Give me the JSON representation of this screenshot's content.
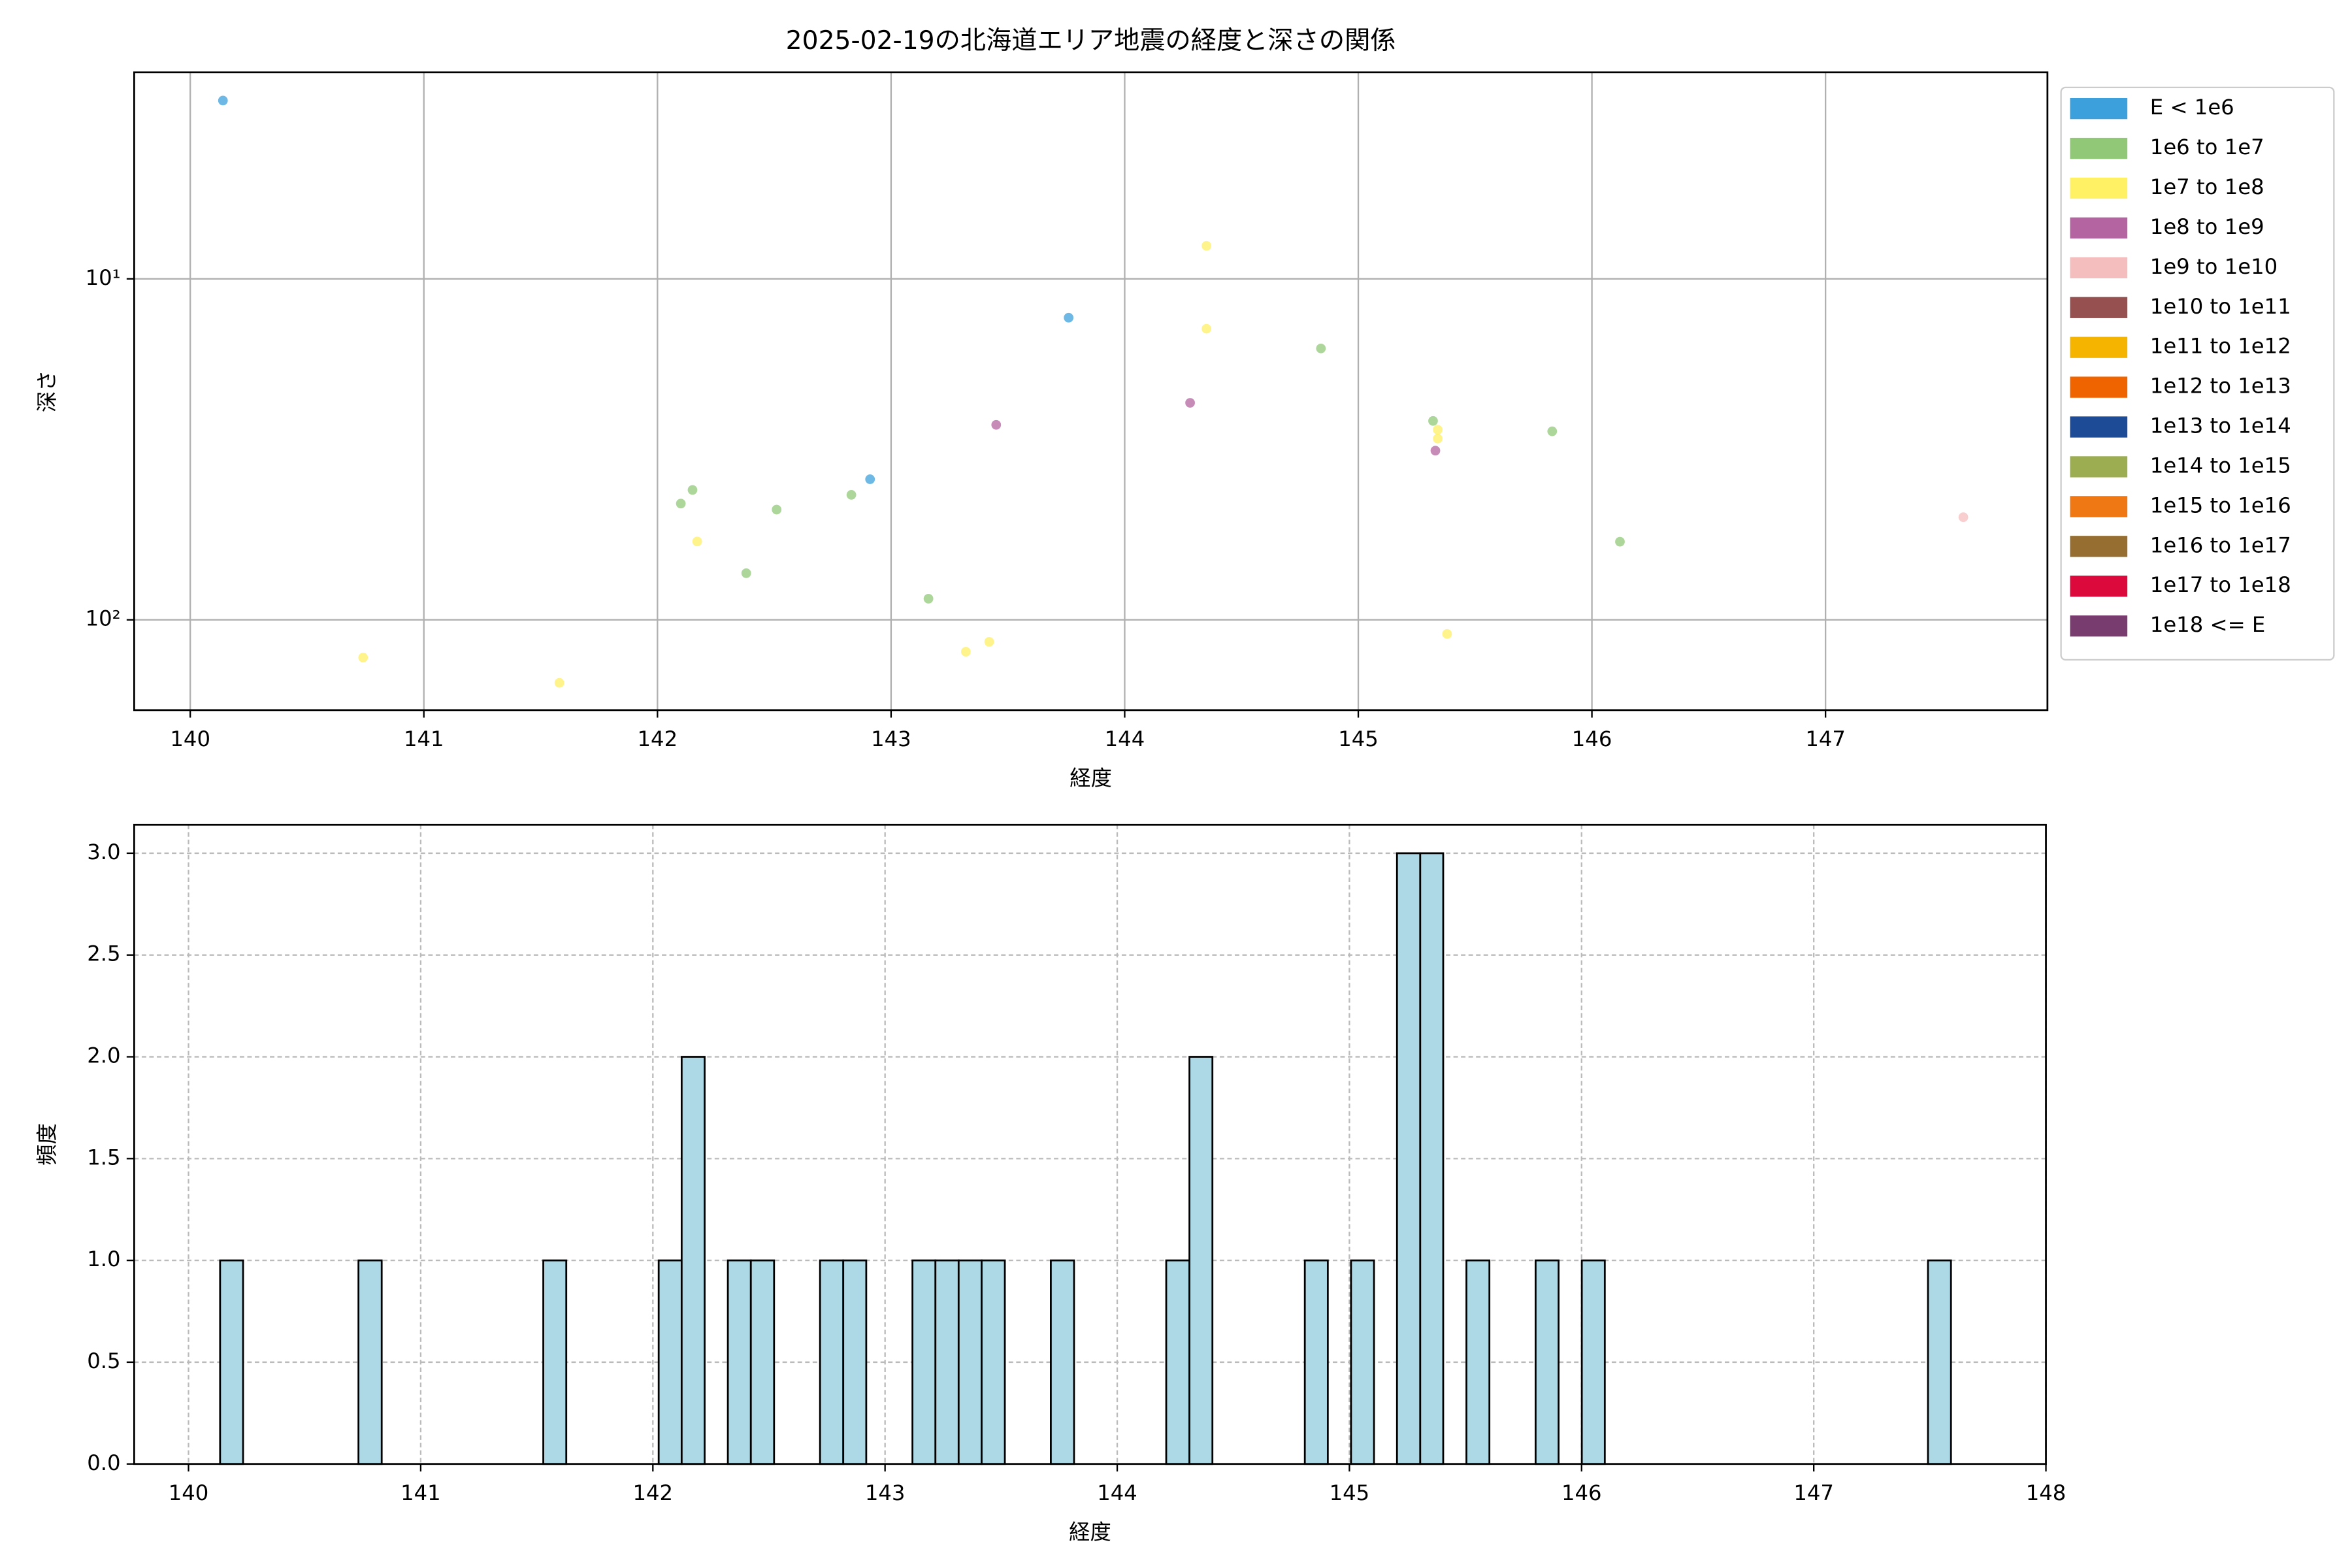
{
  "chart_data": [
    {
      "type": "scatter",
      "title": "2025-02-19の北海道エリア地震の経度と深さの関係",
      "x_label": "経度",
      "y_label": "深さ",
      "xlim": [
        139.76,
        147.95
      ],
      "xticks": [
        140,
        141,
        142,
        143,
        144,
        145,
        146,
        147
      ],
      "ylim": [
        184,
        2.48
      ],
      "yscale": "log",
      "yticks": [
        {
          "value": 10,
          "label": "10¹"
        },
        {
          "value": 100,
          "label": "10²"
        }
      ],
      "grid": true,
      "grid_linestyle": "solid",
      "legend_loc": "right",
      "series": [
        {
          "name": "E < 1e6",
          "color": "#3ca0dc",
          "x": [
            140.14,
            142.91,
            143.76
          ],
          "y": [
            3.0,
            38.7,
            13.0
          ]
        },
        {
          "name": "1e6 to 1e7",
          "color": "#91c878",
          "x": [
            142.1,
            142.15,
            142.38,
            142.51,
            142.83,
            143.16,
            144.84,
            145.32,
            145.83,
            146.12
          ],
          "y": [
            45.6,
            41.6,
            73,
            47.5,
            43,
            86.7,
            16.0,
            26.1,
            28,
            59
          ]
        },
        {
          "name": "1e7 to 1e8",
          "color": "#fff064",
          "x": [
            140.74,
            141.58,
            142.17,
            143.32,
            143.42,
            144.35,
            144.35,
            145.34,
            145.34,
            145.38
          ],
          "y": [
            129,
            153,
            58.9,
            124,
            116,
            8.0,
            14.0,
            27.7,
            29.4,
            110
          ]
        },
        {
          "name": "1e8 to 1e9",
          "color": "#b464a0",
          "x": [
            143.45,
            144.28,
            145.33
          ],
          "y": [
            26.8,
            23.1,
            31.9
          ]
        },
        {
          "name": "1e9 to 1e10",
          "color": "#f5bebe",
          "x": [
            147.59
          ],
          "y": [
            50
          ]
        },
        {
          "name": "1e10 to 1e11",
          "color": "#965050",
          "x": [],
          "y": []
        },
        {
          "name": "1e11 to 1e12",
          "color": "#f5b400",
          "x": [],
          "y": []
        },
        {
          "name": "1e12 to 1e13",
          "color": "#f06400",
          "x": [],
          "y": []
        },
        {
          "name": "1e13 to 1e14",
          "color": "#1e4b96",
          "x": [],
          "y": []
        },
        {
          "name": "1e14 to 1e15",
          "color": "#9bad50",
          "x": [],
          "y": []
        },
        {
          "name": "1e15 to 1e16",
          "color": "#f07814",
          "x": [],
          "y": []
        },
        {
          "name": "1e16 to 1e17",
          "color": "#966e32",
          "x": [],
          "y": []
        },
        {
          "name": "1e17 to 1e18",
          "color": "#dc0a3c",
          "x": [],
          "y": []
        },
        {
          "name": "1e18 <= E",
          "color": "#783c6e",
          "x": [],
          "y": []
        }
      ]
    },
    {
      "type": "histogram",
      "x_label": "経度",
      "y_label": "頻度",
      "color": "#add8e6",
      "edgecolor": "#000000",
      "xlim": [
        139.766,
        148
      ],
      "xticks": [
        140,
        141,
        142,
        143,
        144,
        145,
        146,
        147,
        148
      ],
      "ylim": [
        0,
        3.14
      ],
      "yticks": [
        {
          "value": 0,
          "label": "0.0"
        },
        {
          "value": 0.5,
          "label": "0.5"
        },
        {
          "value": 1,
          "label": "1.0"
        },
        {
          "value": 1.5,
          "label": "1.5"
        },
        {
          "value": 2,
          "label": "2.0"
        },
        {
          "value": 2.5,
          "label": "2.5"
        },
        {
          "value": 3,
          "label": "3.0"
        }
      ],
      "grid": true,
      "grid_linestyle": "dashed",
      "bins": [
        140.136,
        140.235,
        140.335,
        140.434,
        140.534,
        140.633,
        140.732,
        140.832,
        140.931,
        141.031,
        141.13,
        141.229,
        141.329,
        141.428,
        141.528,
        141.627,
        141.726,
        141.826,
        141.925,
        142.025,
        142.124,
        142.223,
        142.323,
        142.422,
        142.522,
        142.621,
        142.72,
        142.82,
        142.919,
        143.019,
        143.118,
        143.217,
        143.317,
        143.416,
        143.516,
        143.615,
        143.714,
        143.814,
        143.913,
        144.013,
        144.112,
        144.211,
        144.311,
        144.41,
        144.51,
        144.609,
        144.708,
        144.808,
        144.907,
        145.007,
        145.106,
        145.205,
        145.305,
        145.404,
        145.504,
        145.603,
        145.702,
        145.802,
        145.901,
        146.001,
        146.1,
        146.199,
        146.299,
        146.398,
        146.498,
        146.597,
        146.696,
        146.796,
        146.895,
        146.995,
        147.094,
        147.193,
        147.293,
        147.392,
        147.492,
        147.591
      ],
      "values": [
        1,
        0,
        0,
        0,
        0,
        0,
        1,
        0,
        0,
        0,
        0,
        0,
        0,
        0,
        1,
        0,
        0,
        0,
        0,
        1,
        2,
        0,
        1,
        1,
        0,
        0,
        1,
        1,
        0,
        0,
        1,
        1,
        1,
        1,
        0,
        0,
        1,
        0,
        0,
        0,
        0,
        1,
        2,
        0,
        0,
        0,
        0,
        1,
        0,
        1,
        0,
        3,
        3,
        0,
        1,
        0,
        0,
        1,
        0,
        1,
        0,
        0,
        0,
        0,
        0,
        0,
        0,
        0,
        0,
        0,
        0,
        0,
        0,
        0,
        1
      ]
    }
  ]
}
